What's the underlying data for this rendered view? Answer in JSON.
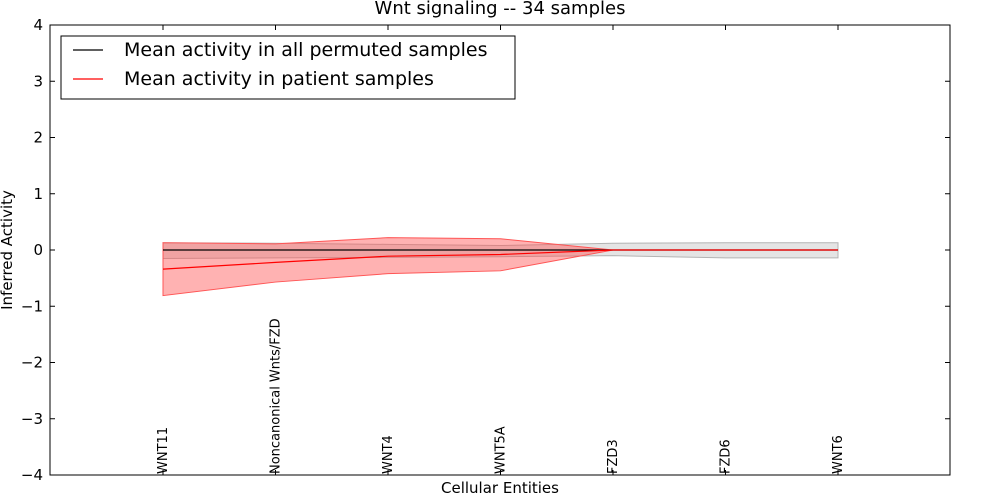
{
  "chart_data": {
    "type": "line",
    "title": "Wnt signaling -- 34 samples",
    "xlabel": "Cellular Entities",
    "ylabel": "Inferred Activity",
    "ylim": [
      -4,
      4
    ],
    "yticks": [
      -4,
      -3,
      -2,
      -1,
      0,
      1,
      2,
      3,
      4
    ],
    "categories": [
      "WNT11",
      "Noncanonical Wnts/FZD",
      "WNT4",
      "WNT5A",
      "FZD3",
      "FZD6",
      "WNT6"
    ],
    "series": [
      {
        "name": "Mean activity in all permuted samples",
        "color": "#000000",
        "band_color": "#b3b3b3",
        "values": [
          0.0,
          0.0,
          0.0,
          0.0,
          0.0,
          0.0,
          0.0
        ],
        "lower": [
          -0.15,
          -0.14,
          -0.13,
          -0.12,
          -0.1,
          -0.14,
          -0.14
        ],
        "upper": [
          0.13,
          0.12,
          0.1,
          0.08,
          0.12,
          0.13,
          0.13
        ]
      },
      {
        "name": "Mean activity in patient samples",
        "color": "#ff0000",
        "band_color": "#ff5555",
        "values": [
          -0.34,
          -0.22,
          -0.11,
          -0.08,
          0.0,
          0.0,
          0.0
        ],
        "lower": [
          -0.81,
          -0.57,
          -0.42,
          -0.37,
          0.0,
          0.0,
          0.0
        ],
        "upper": [
          0.13,
          0.11,
          0.22,
          0.2,
          0.0,
          0.0,
          0.0
        ]
      }
    ],
    "legend": "top-left"
  }
}
